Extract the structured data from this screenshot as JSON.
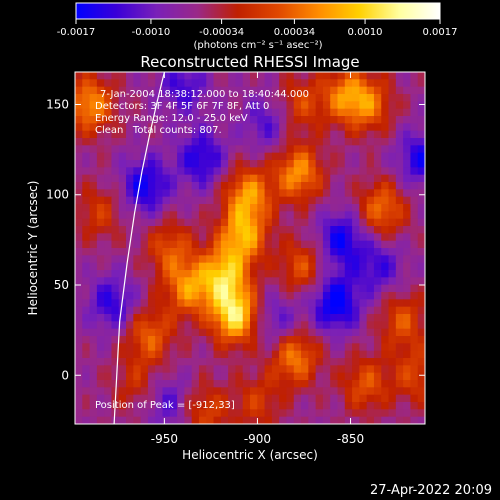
{
  "colorbar": {
    "min": -0.0017,
    "max": 0.0017,
    "tick_values": [
      -0.0017,
      -0.001,
      -0.00034,
      0.00034,
      0.001,
      0.0017
    ],
    "tick_labels": [
      "-0.0017",
      "-0.0010",
      "-0.00034",
      "0.00034",
      "0.0010",
      "0.0017"
    ],
    "unit_label": "(photons cm⁻² s⁻¹ asec⁻²)",
    "colors": [
      "#0000ff",
      "#3a00d8",
      "#7a20b8",
      "#9a2888",
      "#c02000",
      "#e04800",
      "#ff8c00",
      "#ffd000",
      "#ffffa0",
      "#ffffff"
    ]
  },
  "chart_data": {
    "type": "heatmap",
    "title": "Reconstructed RHESSI Image",
    "xlabel": "Heliocentric X (arcsec)",
    "ylabel": "Heliocentric Y (arcsec)",
    "xlim": [
      -998,
      -810
    ],
    "ylim": [
      -27,
      168
    ],
    "x_ticks": [
      -950,
      -900,
      -850
    ],
    "x_tick_labels": [
      "-950",
      "-900",
      "-850"
    ],
    "y_ticks": [
      0,
      50,
      100,
      150
    ],
    "y_tick_labels": [
      "0",
      "50",
      "100",
      "150"
    ],
    "peak": {
      "x": -912,
      "y": 33
    },
    "limb_curve": {
      "x": [
        -977,
        -974,
        -970,
        -966,
        -962,
        -958,
        -954,
        -950
      ],
      "y": [
        -27,
        30,
        62,
        90,
        113,
        133,
        151,
        168
      ]
    },
    "annotations": {
      "time": "7-Jan-2004 18:38:12.000 to 18:40:44.000",
      "detectors": "Detectors: 3F 4F 5F 6F 7F 8F, Att 0",
      "energy": "Energy Range: 12.0 - 25.0 keV",
      "clean": "Clean   Total counts: 807.",
      "peak_text": "Position of Peak = [-912,33]"
    },
    "blobs": [
      {
        "x": -912,
        "y": 33,
        "value": 0.0017
      },
      {
        "x": -918,
        "y": 55,
        "value": 0.0014
      },
      {
        "x": -908,
        "y": 77,
        "value": 0.0013
      },
      {
        "x": -905,
        "y": 100,
        "value": 0.0012
      },
      {
        "x": -937,
        "y": 48,
        "value": 0.0011
      },
      {
        "x": -958,
        "y": 22,
        "value": 0.0009
      },
      {
        "x": -947,
        "y": 70,
        "value": 0.0008
      },
      {
        "x": -990,
        "y": 150,
        "value": 0.0012
      },
      {
        "x": -985,
        "y": 90,
        "value": 0.0006
      },
      {
        "x": -878,
        "y": 112,
        "value": 0.0012
      },
      {
        "x": -876,
        "y": 60,
        "value": 0.0008
      },
      {
        "x": -880,
        "y": 10,
        "value": 0.0011
      },
      {
        "x": -877,
        "y": 150,
        "value": 0.0007
      },
      {
        "x": -853,
        "y": 155,
        "value": 0.001
      },
      {
        "x": -840,
        "y": 150,
        "value": 0.0009
      },
      {
        "x": -833,
        "y": 92,
        "value": 0.001
      },
      {
        "x": -822,
        "y": 30,
        "value": 0.0008
      },
      {
        "x": -842,
        "y": -5,
        "value": 0.0008
      },
      {
        "x": -815,
        "y": 0,
        "value": 0.0007
      },
      {
        "x": -900,
        "y": -15,
        "value": 0.0006
      },
      {
        "x": -928,
        "y": -20,
        "value": 0.0007
      },
      {
        "x": -965,
        "y": -5,
        "value": 0.0005
      },
      {
        "x": -858,
        "y": 40,
        "value": -0.0012
      },
      {
        "x": -930,
        "y": 120,
        "value": -0.0009
      },
      {
        "x": -960,
        "y": 105,
        "value": -0.001
      },
      {
        "x": -855,
        "y": 75,
        "value": -0.001
      },
      {
        "x": -978,
        "y": 40,
        "value": -0.0008
      },
      {
        "x": -940,
        "y": 160,
        "value": -0.0007
      },
      {
        "x": -812,
        "y": 120,
        "value": -0.0009
      },
      {
        "x": -895,
        "y": 140,
        "value": -0.0006
      },
      {
        "x": -835,
        "y": 60,
        "value": -0.0007
      },
      {
        "x": -948,
        "y": -15,
        "value": -0.0006
      },
      {
        "x": -890,
        "y": 30,
        "value": -0.0006
      }
    ]
  },
  "footer": {
    "date": "27-Apr-2022 20:09"
  }
}
